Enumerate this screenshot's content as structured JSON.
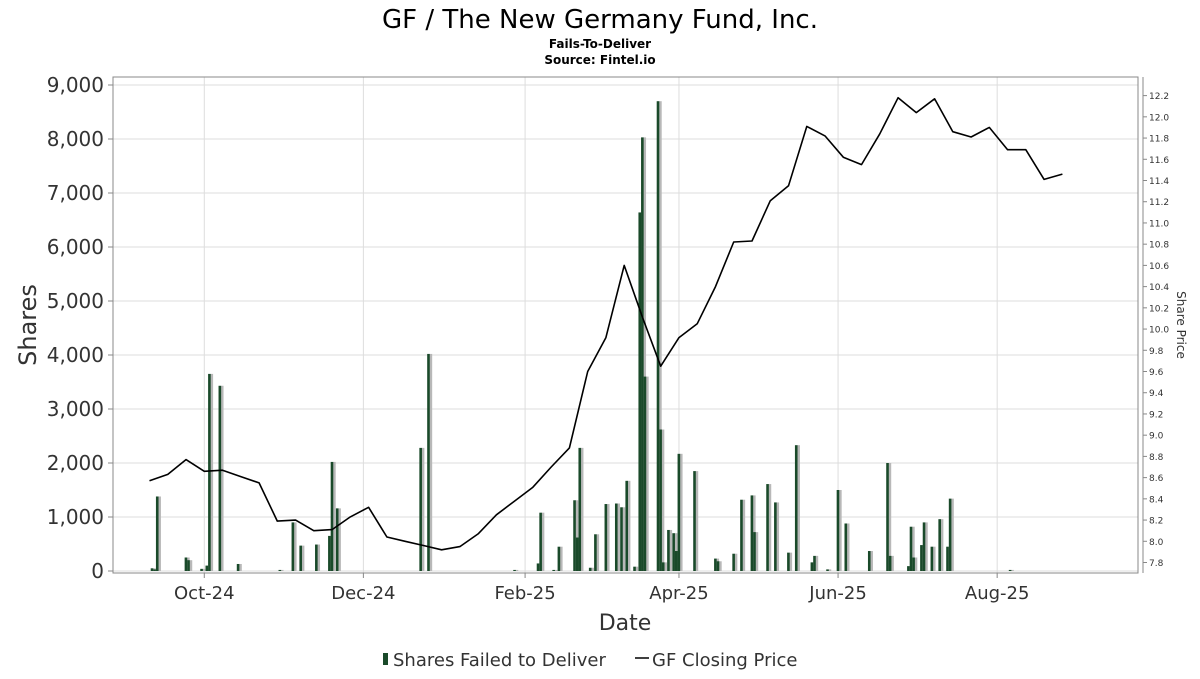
{
  "chart_data": {
    "type": "bar",
    "title": "GF / The New Germany Fund, Inc.",
    "subtitle": "Fails-To-Deliver",
    "source": "Source: Fintel.io",
    "xlabel": "Date",
    "ylabel": "Shares",
    "y2label": "Share Price",
    "ylim": [
      0,
      9000
    ],
    "y2lim": [
      7.72,
      12.3
    ],
    "xlim": [
      "2024-08-27",
      "2025-09-24"
    ],
    "yticks": [
      "0",
      "1,000",
      "2,000",
      "3,000",
      "4,000",
      "5,000",
      "6,000",
      "7,000",
      "8,000",
      "9,000"
    ],
    "y2ticks": [
      "7.8",
      "8.0",
      "8.2",
      "8.4",
      "8.6",
      "8.8",
      "9.0",
      "9.2",
      "9.4",
      "9.6",
      "9.8",
      "10.0",
      "10.2",
      "10.4",
      "10.6",
      "10.8",
      "11.0",
      "11.2",
      "11.4",
      "11.6",
      "11.8",
      "12.0",
      "12.2"
    ],
    "xticks": [
      {
        "date": "2024-10-01",
        "label": "Oct-24"
      },
      {
        "date": "2024-12-01",
        "label": "Dec-24"
      },
      {
        "date": "2025-02-01",
        "label": "Feb-25"
      },
      {
        "date": "2025-04-01",
        "label": "Apr-25"
      },
      {
        "date": "2025-06-01",
        "label": "Jun-25"
      },
      {
        "date": "2025-08-01",
        "label": "Aug-25"
      }
    ],
    "grid": true,
    "legend_position": "bottom",
    "series": [
      {
        "name": "Shares Failed to Deliver",
        "kind": "bar",
        "color": "#1a4a2a",
        "points": [
          [
            "2024-09-11",
            50
          ],
          [
            "2024-09-12",
            30
          ],
          [
            "2024-09-13",
            1380
          ],
          [
            "2024-09-24",
            250
          ],
          [
            "2024-09-25",
            200
          ],
          [
            "2024-09-30",
            40
          ],
          [
            "2024-10-02",
            100
          ],
          [
            "2024-10-03",
            3650
          ],
          [
            "2024-10-07",
            3430
          ],
          [
            "2024-10-14",
            130
          ],
          [
            "2024-10-30",
            20
          ],
          [
            "2024-11-04",
            900
          ],
          [
            "2024-11-07",
            470
          ],
          [
            "2024-11-13",
            490
          ],
          [
            "2024-11-18",
            650
          ],
          [
            "2024-11-19",
            2020
          ],
          [
            "2024-11-21",
            1160
          ],
          [
            "2024-12-23",
            2280
          ],
          [
            "2024-12-26",
            4020
          ],
          [
            "2025-01-28",
            20
          ],
          [
            "2025-02-06",
            140
          ],
          [
            "2025-02-07",
            1080
          ],
          [
            "2025-02-12",
            20
          ],
          [
            "2025-02-14",
            450
          ],
          [
            "2025-02-20",
            1310
          ],
          [
            "2025-02-21",
            620
          ],
          [
            "2025-02-22",
            2280
          ],
          [
            "2025-02-26",
            60
          ],
          [
            "2025-02-28",
            680
          ],
          [
            "2025-03-04",
            1240
          ],
          [
            "2025-03-08",
            1250
          ],
          [
            "2025-03-10",
            1180
          ],
          [
            "2025-03-12",
            1670
          ],
          [
            "2025-03-15",
            80
          ],
          [
            "2025-03-17",
            6640
          ],
          [
            "2025-03-18",
            8030
          ],
          [
            "2025-03-19",
            3600
          ],
          [
            "2025-03-24",
            8700
          ],
          [
            "2025-03-25",
            2620
          ],
          [
            "2025-03-26",
            160
          ],
          [
            "2025-03-28",
            760
          ],
          [
            "2025-03-30",
            700
          ],
          [
            "2025-03-31",
            370
          ],
          [
            "2025-04-01",
            2170
          ],
          [
            "2025-04-07",
            1850
          ],
          [
            "2025-04-15",
            230
          ],
          [
            "2025-04-16",
            180
          ],
          [
            "2025-04-22",
            320
          ],
          [
            "2025-04-25",
            1320
          ],
          [
            "2025-04-29",
            1400
          ],
          [
            "2025-04-30",
            720
          ],
          [
            "2025-05-05",
            1610
          ],
          [
            "2025-05-08",
            1270
          ],
          [
            "2025-05-13",
            340
          ],
          [
            "2025-05-16",
            2330
          ],
          [
            "2025-05-22",
            160
          ],
          [
            "2025-05-23",
            280
          ],
          [
            "2025-05-28",
            30
          ],
          [
            "2025-06-01",
            1500
          ],
          [
            "2025-06-04",
            880
          ],
          [
            "2025-06-13",
            370
          ],
          [
            "2025-06-20",
            2000
          ],
          [
            "2025-06-21",
            280
          ],
          [
            "2025-06-28",
            90
          ],
          [
            "2025-06-29",
            820
          ],
          [
            "2025-06-30",
            250
          ],
          [
            "2025-07-03",
            480
          ],
          [
            "2025-07-04",
            900
          ],
          [
            "2025-07-07",
            450
          ],
          [
            "2025-07-10",
            960
          ],
          [
            "2025-07-13",
            450
          ],
          [
            "2025-07-14",
            1340
          ],
          [
            "2025-08-06",
            20
          ]
        ]
      },
      {
        "name": "GF Closing Price",
        "kind": "line",
        "color": "#000000",
        "points": [
          [
            "2024-09-10",
            8.57
          ],
          [
            "2024-09-17",
            8.63
          ],
          [
            "2024-09-24",
            8.77
          ],
          [
            "2024-10-01",
            8.66
          ],
          [
            "2024-10-08",
            8.67
          ],
          [
            "2024-10-15",
            8.61
          ],
          [
            "2024-10-22",
            8.55
          ],
          [
            "2024-10-29",
            8.19
          ],
          [
            "2024-11-05",
            8.2
          ],
          [
            "2024-11-12",
            8.1
          ],
          [
            "2024-11-19",
            8.11
          ],
          [
            "2024-11-26",
            8.23
          ],
          [
            "2024-12-03",
            8.32
          ],
          [
            "2024-12-10",
            8.04
          ],
          [
            "2024-12-17",
            8.0
          ],
          [
            "2024-12-24",
            7.96
          ],
          [
            "2024-12-31",
            7.92
          ],
          [
            "2025-01-07",
            7.95
          ],
          [
            "2025-01-14",
            8.07
          ],
          [
            "2025-01-21",
            8.25
          ],
          [
            "2025-01-28",
            8.38
          ],
          [
            "2025-02-04",
            8.51
          ],
          [
            "2025-02-11",
            8.7
          ],
          [
            "2025-02-18",
            8.88
          ],
          [
            "2025-02-25",
            9.6
          ],
          [
            "2025-03-04",
            9.92
          ],
          [
            "2025-03-11",
            10.6
          ],
          [
            "2025-03-18",
            10.11
          ],
          [
            "2025-03-25",
            9.65
          ],
          [
            "2025-04-01",
            9.92
          ],
          [
            "2025-04-08",
            10.05
          ],
          [
            "2025-04-15",
            10.4
          ],
          [
            "2025-04-22",
            10.82
          ],
          [
            "2025-04-29",
            10.83
          ],
          [
            "2025-05-06",
            11.21
          ],
          [
            "2025-05-13",
            11.35
          ],
          [
            "2025-05-20",
            11.91
          ],
          [
            "2025-05-27",
            11.82
          ],
          [
            "2025-06-03",
            11.62
          ],
          [
            "2025-06-10",
            11.55
          ],
          [
            "2025-06-17",
            11.84
          ],
          [
            "2025-06-24",
            12.18
          ],
          [
            "2025-07-01",
            12.04
          ],
          [
            "2025-07-08",
            12.17
          ],
          [
            "2025-07-15",
            11.86
          ],
          [
            "2025-07-22",
            11.81
          ],
          [
            "2025-07-29",
            11.9
          ],
          [
            "2025-08-05",
            11.69
          ],
          [
            "2025-08-12",
            11.69
          ],
          [
            "2025-08-19",
            11.41
          ],
          [
            "2025-08-26",
            11.46
          ]
        ]
      }
    ]
  }
}
